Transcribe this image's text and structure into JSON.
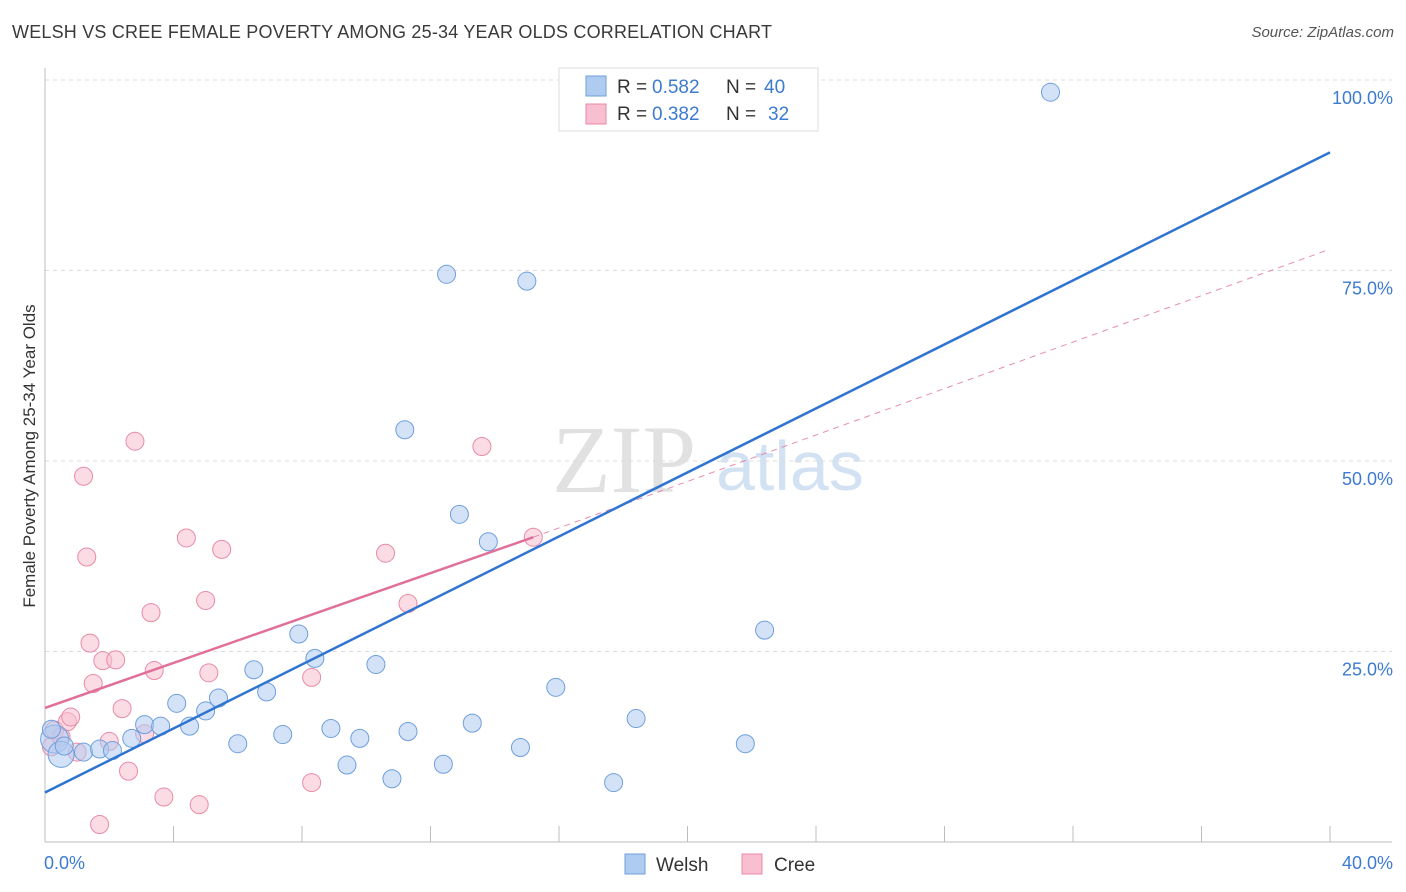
{
  "header": {
    "title": "WELSH VS CREE FEMALE POVERTY AMONG 25-34 YEAR OLDS CORRELATION CHART",
    "source": "Source: ZipAtlas.com"
  },
  "watermark": {
    "zip": "ZIP",
    "atlas": "atlas"
  },
  "colors": {
    "welsh_fill": "#aecbf0",
    "welsh_stroke": "#6e9fdc",
    "welsh_line": "#2f74d0",
    "cree_fill": "#f7bfd0",
    "cree_stroke": "#e98aa8",
    "cree_line": "#e0709a",
    "grid": "#dcdcdc",
    "accent_text": "#3d7bd0"
  },
  "legend_top": {
    "rows": [
      {
        "r_label": "R = ",
        "r_value": "0.582",
        "n_label": "N = ",
        "n_value": "40"
      },
      {
        "r_label": "R = ",
        "r_value": "0.382",
        "n_label": "N = ",
        "n_value": "32"
      }
    ]
  },
  "legend_bottom": {
    "welsh": "Welsh",
    "cree": "Cree"
  },
  "chart_data": {
    "type": "scatter",
    "title": "WELSH VS CREE FEMALE POVERTY AMONG 25-34 YEAR OLDS CORRELATION CHART",
    "xlabel": "",
    "ylabel": "Female Poverty Among 25-34 Year Olds",
    "xlim": [
      0,
      40
    ],
    "ylim": [
      0,
      100
    ],
    "x_tick_labels": {
      "left": "0.0%",
      "right": "40.0%"
    },
    "y_ticks": [
      {
        "value": 25,
        "label": "25.0%"
      },
      {
        "value": 50,
        "label": "50.0%"
      },
      {
        "value": 75,
        "label": "75.0%"
      },
      {
        "value": 100,
        "label": "100.0%"
      }
    ],
    "series": [
      {
        "name": "Welsh",
        "r": 0.582,
        "n": 40,
        "trend": {
          "x": [
            0,
            40
          ],
          "y": [
            6.5,
            90.5
          ]
        },
        "points": [
          [
            0.3,
            13.5
          ],
          [
            0.5,
            11.5
          ],
          [
            1.2,
            11.8
          ],
          [
            1.7,
            12.2
          ],
          [
            2.1,
            12.0
          ],
          [
            2.7,
            13.6
          ],
          [
            3.1,
            15.4
          ],
          [
            3.6,
            15.2
          ],
          [
            4.1,
            18.2
          ],
          [
            4.5,
            15.2
          ],
          [
            5.0,
            17.2
          ],
          [
            5.4,
            18.9
          ],
          [
            6.0,
            12.9
          ],
          [
            6.5,
            22.6
          ],
          [
            6.9,
            19.7
          ],
          [
            7.4,
            14.1
          ],
          [
            7.9,
            27.3
          ],
          [
            8.4,
            24.1
          ],
          [
            8.9,
            14.9
          ],
          [
            9.4,
            10.1
          ],
          [
            9.8,
            13.6
          ],
          [
            10.3,
            23.3
          ],
          [
            10.8,
            8.3
          ],
          [
            11.3,
            14.5
          ],
          [
            11.2,
            54.1
          ],
          [
            12.4,
            10.2
          ],
          [
            12.5,
            74.5
          ],
          [
            12.9,
            43.0
          ],
          [
            13.3,
            15.6
          ],
          [
            13.8,
            39.4
          ],
          [
            14.8,
            12.4
          ],
          [
            15.0,
            73.6
          ],
          [
            15.9,
            20.3
          ],
          [
            17.7,
            7.8
          ],
          [
            18.4,
            16.2
          ],
          [
            21.8,
            12.9
          ],
          [
            22.4,
            27.8
          ],
          [
            31.3,
            98.4
          ],
          [
            0.2,
            14.8
          ],
          [
            0.6,
            12.6
          ]
        ]
      },
      {
        "name": "Cree",
        "r": 0.382,
        "n": 32,
        "trend": {
          "x": [
            0,
            15.2
          ],
          "y": [
            17.6,
            40.0
          ]
        },
        "trend_extension": {
          "x": [
            15.2,
            40
          ],
          "y": [
            40.0,
            77.8
          ]
        },
        "points": [
          [
            0.2,
            12.5
          ],
          [
            0.3,
            14.7
          ],
          [
            0.5,
            13.8
          ],
          [
            0.7,
            15.8
          ],
          [
            0.8,
            16.4
          ],
          [
            1.0,
            11.8
          ],
          [
            1.2,
            48.0
          ],
          [
            1.3,
            37.4
          ],
          [
            1.4,
            26.1
          ],
          [
            1.5,
            20.8
          ],
          [
            1.7,
            2.3
          ],
          [
            1.8,
            23.8
          ],
          [
            2.0,
            13.2
          ],
          [
            2.2,
            23.9
          ],
          [
            2.4,
            17.5
          ],
          [
            2.6,
            9.3
          ],
          [
            3.1,
            14.2
          ],
          [
            3.3,
            30.1
          ],
          [
            3.4,
            22.5
          ],
          [
            2.8,
            52.6
          ],
          [
            3.7,
            5.9
          ],
          [
            4.4,
            39.9
          ],
          [
            4.8,
            4.9
          ],
          [
            5.0,
            31.7
          ],
          [
            5.1,
            22.2
          ],
          [
            5.5,
            38.4
          ],
          [
            8.3,
            7.8
          ],
          [
            8.3,
            21.6
          ],
          [
            10.6,
            37.9
          ],
          [
            11.3,
            31.3
          ],
          [
            13.6,
            51.9
          ],
          [
            15.2,
            40.0
          ]
        ]
      }
    ]
  }
}
